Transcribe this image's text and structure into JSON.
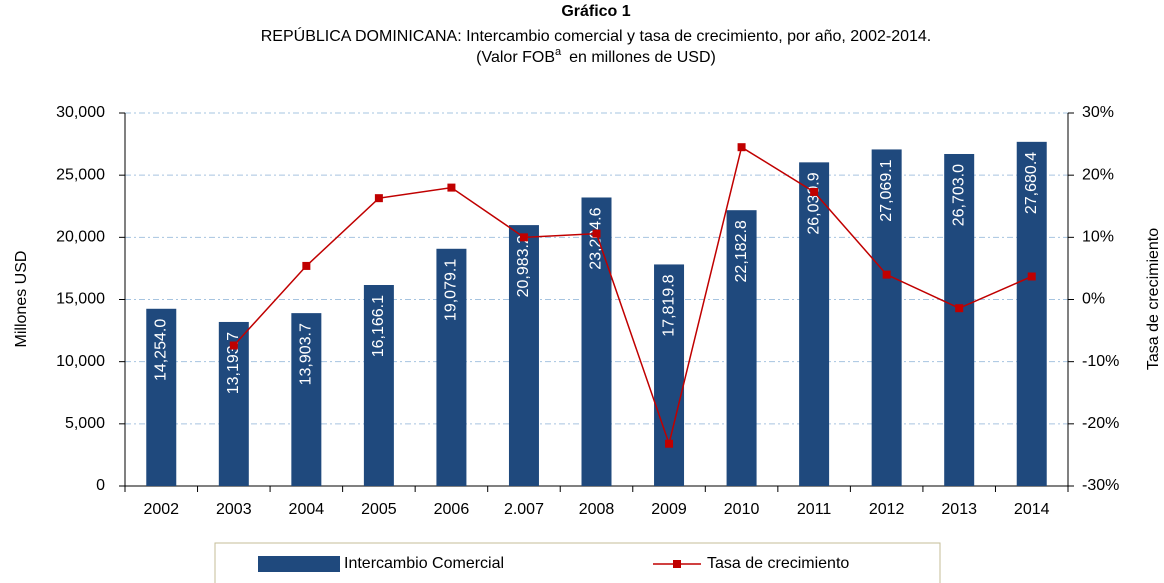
{
  "chart_data": {
    "type": "bar",
    "title": "Gráfico 1",
    "subtitle": "REPÚBLICA DOMINICANA: Intercambio comercial y tasa de crecimiento, por año, 2002-2014.",
    "subtitle_2": "(Valor FOB",
    "subtitle_2_superscript": "a",
    "subtitle_2_end": "en millones de USD)",
    "ylabel": "Millones USD",
    "y2label": "Tasa de crecimiento",
    "categories": [
      "2002",
      "2003",
      "2004",
      "2005",
      "2006",
      "2.007",
      "2008",
      "2009",
      "2010",
      "2011",
      "2012",
      "2013",
      "2014"
    ],
    "series": [
      {
        "name": "Intercambio Comercial",
        "type": "bar",
        "color": "#1f497d",
        "values": [
          14254.0,
          13193.7,
          13903.7,
          16166.1,
          19079.1,
          20983.2,
          23204.6,
          17819.8,
          22182.8,
          26030.9,
          27069.1,
          26703.0,
          27680.4
        ],
        "value_labels": [
          "14,254.0",
          "13,193.7",
          "13,903.7",
          "16,166.1",
          "19,079.1",
          "20,983.2",
          "23,204.6",
          "17,819.8",
          "22,182.8",
          "26,030.9",
          "27,069.1",
          "26,703.0",
          "27,680.4"
        ]
      },
      {
        "name": "Tasa de crecimiento",
        "type": "line",
        "axis": "y2",
        "color": "#c00000",
        "values": [
          null,
          -7.4,
          5.4,
          16.3,
          18.0,
          10.0,
          10.6,
          -23.2,
          24.5,
          17.3,
          4.0,
          -1.4,
          3.7
        ]
      }
    ],
    "ylim": [
      0,
      30000
    ],
    "yticks": [
      0,
      {
        "value": 5000,
        "label": "5,000"
      },
      {
        "value": 10000,
        "label": "10,000"
      },
      {
        "value": 15000,
        "label": "15,000"
      },
      {
        "value": 20000,
        "label": "20,000"
      },
      {
        "value": 25000,
        "label": "25,000"
      },
      {
        "value": 30000,
        "label": "30,000"
      }
    ],
    "y2lim": [
      -30,
      30
    ],
    "y2ticks": [
      {
        "value": -30,
        "label": "-30%"
      },
      {
        "value": -20,
        "label": "-20%"
      },
      {
        "value": -10,
        "label": "-10%"
      },
      {
        "value": 0,
        "label": "0%"
      },
      {
        "value": 10,
        "label": "10%"
      },
      {
        "value": 20,
        "label": "20%"
      },
      {
        "value": 30,
        "label": "30%"
      }
    ],
    "grid": true,
    "legend": "bottom"
  }
}
